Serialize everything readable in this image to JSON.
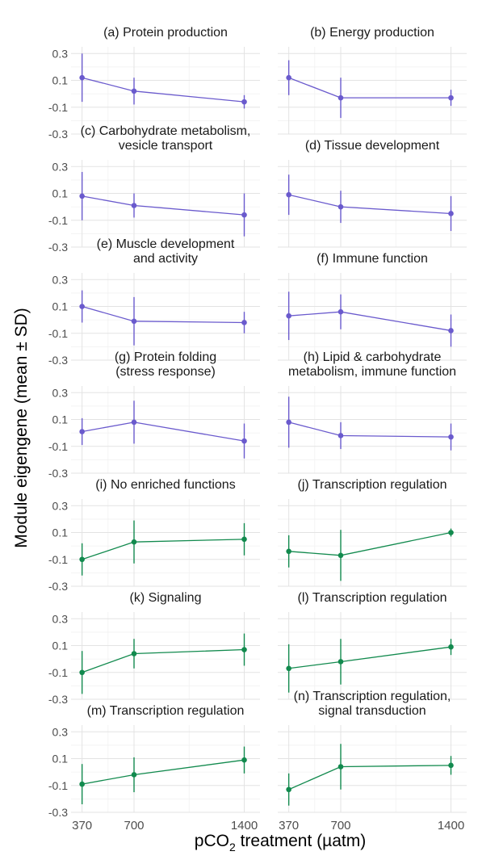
{
  "chart_data": {
    "type": "line",
    "title": "",
    "ylabel": "Module eigengene (mean ± SD)",
    "xlabel": {
      "prefix": "pCO",
      "subscript": "2",
      "suffix": " treatment (µatm)"
    },
    "x": [
      370,
      700,
      1400
    ],
    "xlim": [
      300,
      1500
    ],
    "ylim": [
      -0.3,
      0.35
    ],
    "yticks": [
      0.3,
      0.1,
      -0.1,
      -0.3
    ],
    "ytick_labels": [
      "0.3",
      "0.1",
      "-0.1",
      "-0.3"
    ],
    "xtick_labels": [
      "370",
      "700",
      "1400"
    ],
    "colors": {
      "purple": "#6a5acd",
      "green": "#128a4e"
    },
    "panels": [
      {
        "title_lines": [
          "(a) Protein production"
        ],
        "color": "purple",
        "mean": [
          0.12,
          0.02,
          -0.06
        ],
        "sd": [
          0.18,
          0.1,
          0.05
        ]
      },
      {
        "title_lines": [
          "(b) Energy production"
        ],
        "color": "purple",
        "mean": [
          0.12,
          -0.03,
          -0.03
        ],
        "sd": [
          0.13,
          0.15,
          0.06
        ]
      },
      {
        "title_lines": [
          "(c) Carbohydrate metabolism,",
          "vesicle transport"
        ],
        "color": "purple",
        "mean": [
          0.08,
          0.01,
          -0.06
        ],
        "sd": [
          0.18,
          0.09,
          0.16
        ]
      },
      {
        "title_lines": [
          "(d) Tissue development"
        ],
        "color": "purple",
        "mean": [
          0.09,
          0.0,
          -0.05
        ],
        "sd": [
          0.15,
          0.12,
          0.13
        ]
      },
      {
        "title_lines": [
          "(e) Muscle development",
          "and activity"
        ],
        "color": "purple",
        "mean": [
          0.1,
          -0.01,
          -0.02
        ],
        "sd": [
          0.12,
          0.18,
          0.08
        ]
      },
      {
        "title_lines": [
          "(f) Immune function"
        ],
        "color": "purple",
        "mean": [
          0.03,
          0.06,
          -0.08
        ],
        "sd": [
          0.18,
          0.13,
          0.12
        ]
      },
      {
        "title_lines": [
          "(g) Protein folding",
          "(stress response)"
        ],
        "color": "purple",
        "mean": [
          0.01,
          0.08,
          -0.06
        ],
        "sd": [
          0.1,
          0.16,
          0.13
        ]
      },
      {
        "title_lines": [
          "(h) Lipid & carbohydrate",
          "metabolism, immune function"
        ],
        "color": "purple",
        "mean": [
          0.08,
          -0.02,
          -0.03
        ],
        "sd": [
          0.19,
          0.1,
          0.1
        ]
      },
      {
        "title_lines": [
          "(i) No enriched functions"
        ],
        "color": "green",
        "mean": [
          -0.1,
          0.03,
          0.05
        ],
        "sd": [
          0.12,
          0.16,
          0.12
        ]
      },
      {
        "title_lines": [
          "(j) Transcription regulation"
        ],
        "color": "green",
        "mean": [
          -0.04,
          -0.07,
          0.1
        ],
        "sd": [
          0.12,
          0.19,
          0.03
        ]
      },
      {
        "title_lines": [
          "(k) Signaling"
        ],
        "color": "green",
        "mean": [
          -0.1,
          0.04,
          0.07
        ],
        "sd": [
          0.16,
          0.11,
          0.12
        ]
      },
      {
        "title_lines": [
          "(l) Transcription regulation"
        ],
        "color": "green",
        "mean": [
          -0.07,
          -0.02,
          0.09
        ],
        "sd": [
          0.18,
          0.17,
          0.06
        ]
      },
      {
        "title_lines": [
          "(m) Transcription regulation"
        ],
        "color": "green",
        "mean": [
          -0.09,
          -0.02,
          0.09
        ],
        "sd": [
          0.15,
          0.13,
          0.1
        ]
      },
      {
        "title_lines": [
          "(n) Transcription regulation,",
          "signal transduction"
        ],
        "color": "green",
        "mean": [
          -0.13,
          0.04,
          0.05
        ],
        "sd": [
          0.12,
          0.17,
          0.07
        ]
      }
    ]
  }
}
